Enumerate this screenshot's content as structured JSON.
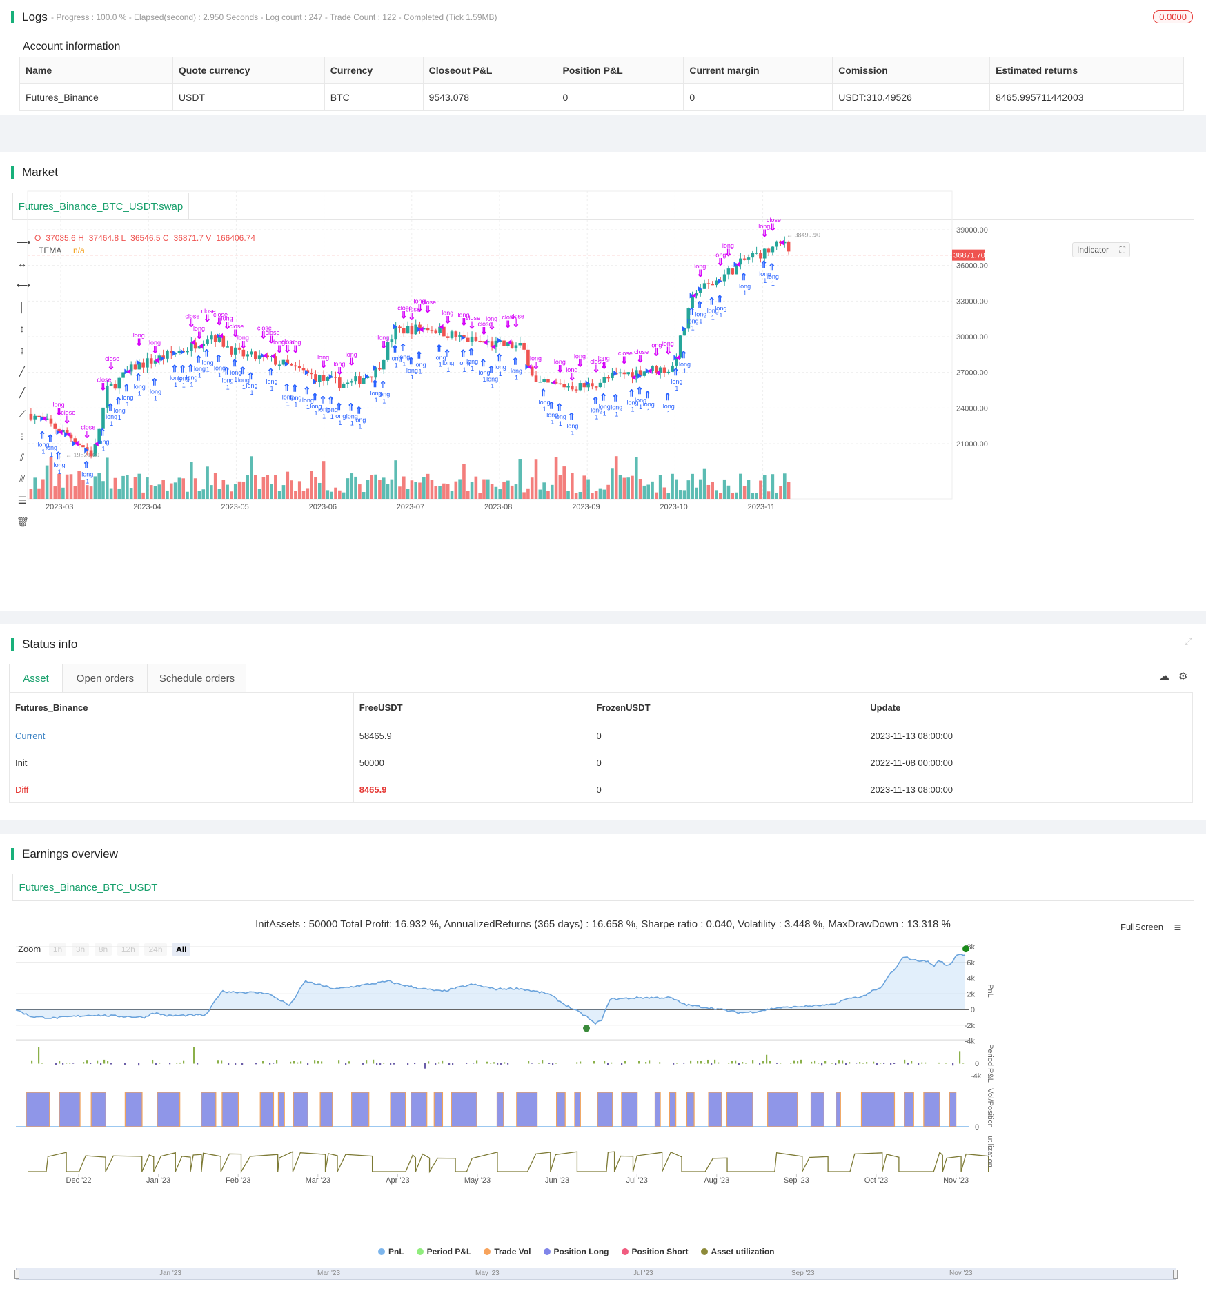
{
  "logs": {
    "title": "Logs",
    "status_line": "- Progress : 100.0 % - Elapsed(second) : 2.950  Seconds - Log count : 247 - Trade Count : 122 - Completed (Tick 1.59MB)",
    "badge": "0.0000"
  },
  "account": {
    "title": "Account information",
    "headers": [
      "Name",
      "Quote currency",
      "Currency",
      "Closeout P&L",
      "Position P&L",
      "Current margin",
      "Comission",
      "Estimated returns"
    ],
    "row": [
      "Futures_Binance",
      "USDT",
      "BTC",
      "9543.078",
      "0",
      "0",
      "USDT:310.49526",
      "8465.995711442003"
    ]
  },
  "market": {
    "title": "Market",
    "tab": "Futures_Binance_BTC_USDT:swap",
    "ohlc": {
      "O": "37085.6",
      "H": "37464.8",
      "L": "36546.5",
      "C": "36871.7",
      "V": "166406.74"
    },
    "indicator_name": "TEMA",
    "indicator_value": "n/a",
    "indicator_button": "Indicator",
    "last_price": "36871.70",
    "high_marker": "38499.90",
    "low_marker": "19521.60",
    "price_ticks": [
      "39000.00",
      "36000.00",
      "33000.00",
      "30000.00",
      "27000.00",
      "24000.00",
      "21000.00"
    ],
    "time_ticks": [
      "2023-03",
      "2023-04",
      "2023-05",
      "2023-06",
      "2023-07",
      "2023-08",
      "2023-09",
      "2023-10",
      "2023-11"
    ],
    "signal_labels": {
      "long": "long",
      "close": "close",
      "qty": "1"
    },
    "colors": {
      "up": "#26a69a",
      "down": "#ef5350",
      "long": "#2962ff",
      "close": "#d500f9",
      "last_price_line": "#ef5350"
    }
  },
  "status": {
    "title": "Status info",
    "tabs": [
      "Asset",
      "Open orders",
      "Schedule orders"
    ],
    "headers": [
      "Futures_Binance",
      "FreeUSDT",
      "FrozenUSDT",
      "Update"
    ],
    "rows": [
      [
        "Current",
        "58465.9",
        "0",
        "2023-11-13 08:00:00"
      ],
      [
        "Init",
        "50000",
        "0",
        "2022-11-08 00:00:00"
      ],
      [
        "Diff",
        "8465.9",
        "0",
        "2023-11-13 08:00:00"
      ]
    ]
  },
  "earnings": {
    "title": "Earnings overview",
    "tab": "Futures_Binance_BTC_USDT",
    "summary": "InitAssets : 50000 Total Profit: 16.932 %, AnnualizedReturns (365 days) : 16.658 %, Sharpe ratio : 0.040, Volatility : 3.448 %, MaxDrawDown : 13.318 %",
    "fullscreen": "FullScreen",
    "zoom_label": "Zoom",
    "zoom_options": [
      "1h",
      "3h",
      "8h",
      "12h",
      "24h",
      "All"
    ],
    "pnl_ticks": [
      "8k",
      "6k",
      "4k",
      "2k",
      "0",
      "-2k",
      "-4k"
    ],
    "period_ticks": [
      "0",
      "-4k"
    ],
    "vol_ticks": [
      "0"
    ],
    "axis_titles": [
      "PnL",
      "Period P&L",
      "Vol/Position",
      "utilization"
    ],
    "time_ticks": [
      "Dec '22",
      "Jan '23",
      "Feb '23",
      "Mar '23",
      "Apr '23",
      "May '23",
      "Jun '23",
      "Jul '23",
      "Aug '23",
      "Sep '23",
      "Oct '23",
      "Nov '23"
    ],
    "navigator_ticks": [
      "Jan '23",
      "Mar '23",
      "May '23",
      "Jul '23",
      "Sep '23",
      "Nov '23"
    ],
    "legend": [
      {
        "label": "PnL",
        "color": "#7cb5ec"
      },
      {
        "label": "Period P&L",
        "color": "#90ed7d"
      },
      {
        "label": "Trade Vol",
        "color": "#f7a35c"
      },
      {
        "label": "Position Long",
        "color": "#8085e9"
      },
      {
        "label": "Position Short",
        "color": "#f15c80"
      },
      {
        "label": "Asset utilization",
        "color": "#8d8a3a"
      }
    ]
  }
}
